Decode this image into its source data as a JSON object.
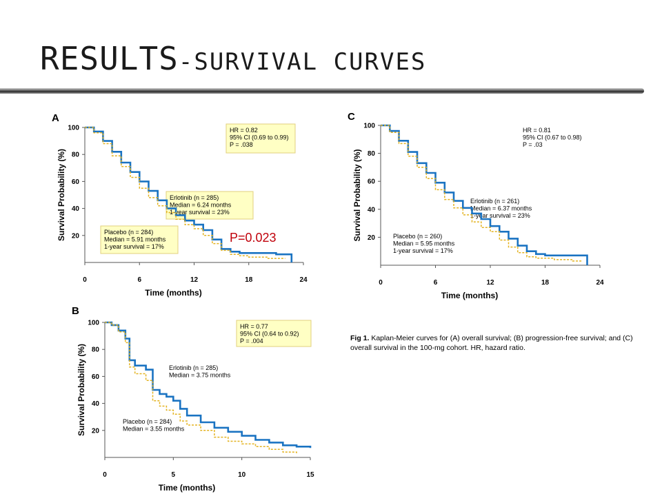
{
  "slide": {
    "title_main": "RESULTS",
    "title_sub": "-SURVIVAL CURVES",
    "p_note": "P=0.023",
    "caption_bold": "Fig 1.",
    "caption_text": " Kaplan-Meier curves for (A) overall survival; (B) progression-free survival; and (C) overall survival in the 100-mg cohort. HR, hazard ratio."
  },
  "colors": {
    "erlotinib": "#1a73c2",
    "placebo": "#e3b21f",
    "box_fill": "#ffffc4",
    "box_stroke": "#e1cf7e",
    "p_note": "#c0000a"
  },
  "chart_data": [
    {
      "panel": "A",
      "type": "line",
      "xlabel": "Time (months)",
      "ylabel": "Survival Probability (%)",
      "xlim": [
        0,
        24
      ],
      "ylim": [
        0,
        100
      ],
      "xticks": [
        0,
        6,
        12,
        18,
        24
      ],
      "yticks": [
        20,
        40,
        60,
        80,
        100
      ],
      "grid": false,
      "series": [
        {
          "id": "erlotinib",
          "style": "solid",
          "x": [
            0,
            1,
            2,
            3,
            4,
            5,
            6,
            7,
            8,
            9,
            10,
            11,
            12,
            13,
            14,
            15,
            16,
            17,
            18,
            19,
            20,
            21,
            22,
            22.7,
            22.7
          ],
          "y": [
            100,
            97,
            90,
            82,
            74,
            67,
            60,
            53,
            46,
            40,
            35,
            31,
            28,
            24,
            17,
            10,
            8,
            7,
            7,
            7,
            7,
            6,
            6,
            6,
            0
          ]
        },
        {
          "id": "placebo",
          "style": "dashed",
          "x": [
            0,
            1,
            2,
            3,
            4,
            5,
            6,
            7,
            8,
            9,
            10,
            11,
            12,
            13,
            14,
            15,
            16,
            17,
            18,
            19,
            20,
            21,
            22
          ],
          "y": [
            100,
            96,
            88,
            79,
            71,
            63,
            55,
            48,
            42,
            37,
            32,
            28,
            25,
            20,
            14,
            9,
            6,
            5,
            4,
            4,
            3,
            3,
            3
          ]
        }
      ],
      "annotations": [
        {
          "id": "stats",
          "lines": [
            "HR = 0.82",
            "95% CI (0.69 to 0.99)",
            "P = .038"
          ]
        },
        {
          "id": "erlotinib",
          "lines": [
            "Erlotinib (n = 285)",
            "Median = 6.24 months",
            "1-year survival = 23%"
          ]
        },
        {
          "id": "placebo",
          "lines": [
            "Placebo (n = 284)",
            "Median = 5.91 months",
            "1-year survival = 17%"
          ]
        }
      ]
    },
    {
      "panel": "B",
      "type": "line",
      "xlabel": "Time (months)",
      "ylabel": "Survival Probability (%)",
      "xlim": [
        0,
        15
      ],
      "ylim": [
        0,
        100
      ],
      "xticks": [
        0,
        5,
        10,
        15
      ],
      "yticks": [
        20,
        40,
        60,
        80,
        100
      ],
      "grid": false,
      "series": [
        {
          "id": "erlotinib",
          "style": "solid",
          "x": [
            0,
            0.5,
            1,
            1.5,
            1.8,
            2.2,
            3,
            3.5,
            4,
            4.5,
            5,
            5.5,
            6,
            7,
            8,
            9,
            10,
            11,
            12,
            13,
            14,
            15
          ],
          "y": [
            100,
            98,
            94,
            88,
            72,
            68,
            65,
            50,
            47,
            45,
            42,
            36,
            31,
            26,
            22,
            19,
            16,
            13,
            11,
            9,
            8,
            7
          ]
        },
        {
          "id": "placebo",
          "style": "dashed",
          "x": [
            0,
            0.5,
            1,
            1.5,
            1.8,
            2.2,
            3,
            3.5,
            4,
            4.5,
            5,
            5.5,
            6,
            7,
            8,
            9,
            10,
            11,
            12,
            13,
            14
          ],
          "y": [
            100,
            98,
            93,
            85,
            67,
            62,
            57,
            42,
            38,
            35,
            32,
            27,
            24,
            20,
            15,
            12,
            10,
            8,
            6,
            4,
            3
          ]
        }
      ],
      "annotations": [
        {
          "id": "stats",
          "lines": [
            "HR = 0.77",
            "95% CI (0.64 to 0.92)",
            "P = .004"
          ]
        },
        {
          "id": "erlotinib",
          "lines": [
            "Erlotinib (n = 285)",
            "Median = 3.75 months"
          ]
        },
        {
          "id": "placebo",
          "lines": [
            "Placebo (n = 284)",
            "Median = 3.55 months"
          ]
        }
      ]
    },
    {
      "panel": "C",
      "type": "line",
      "xlabel": "Time (months)",
      "ylabel": "Survival Probability (%)",
      "xlim": [
        0,
        24
      ],
      "ylim": [
        0,
        100
      ],
      "xticks": [
        0,
        6,
        12,
        18,
        24
      ],
      "yticks": [
        20,
        40,
        60,
        80,
        100
      ],
      "grid": false,
      "series": [
        {
          "id": "erlotinib",
          "style": "solid",
          "x": [
            0,
            1,
            2,
            3,
            4,
            5,
            6,
            7,
            8,
            9,
            10,
            11,
            12,
            13,
            14,
            15,
            16,
            17,
            18,
            19,
            20,
            21,
            22,
            22.6,
            22.6
          ],
          "y": [
            100,
            96,
            89,
            81,
            73,
            66,
            59,
            52,
            46,
            41,
            37,
            33,
            28,
            24,
            19,
            14,
            10,
            8,
            7,
            7,
            7,
            7,
            7,
            7,
            0
          ]
        },
        {
          "id": "placebo",
          "style": "dashed",
          "x": [
            0,
            1,
            2,
            3,
            4,
            5,
            6,
            7,
            8,
            9,
            10,
            11,
            12,
            13,
            14,
            15,
            16,
            17,
            18,
            19,
            20,
            21,
            22
          ],
          "y": [
            100,
            95,
            87,
            78,
            70,
            62,
            54,
            47,
            41,
            36,
            31,
            27,
            24,
            18,
            13,
            9,
            6,
            5,
            5,
            4,
            4,
            3,
            3
          ]
        }
      ],
      "annotations": [
        {
          "id": "stats",
          "lines": [
            "HR = 0.81",
            "95% CI (0.67 to 0.98)",
            "P = .03"
          ]
        },
        {
          "id": "erlotinib",
          "lines": [
            "Erlotinib (n = 261)",
            "Median = 6.37 months",
            "1-year survival = 23%"
          ]
        },
        {
          "id": "placebo",
          "lines": [
            "Placebo (n = 260)",
            "Median = 5.95 months",
            "1-year survival = 17%"
          ]
        }
      ]
    }
  ]
}
